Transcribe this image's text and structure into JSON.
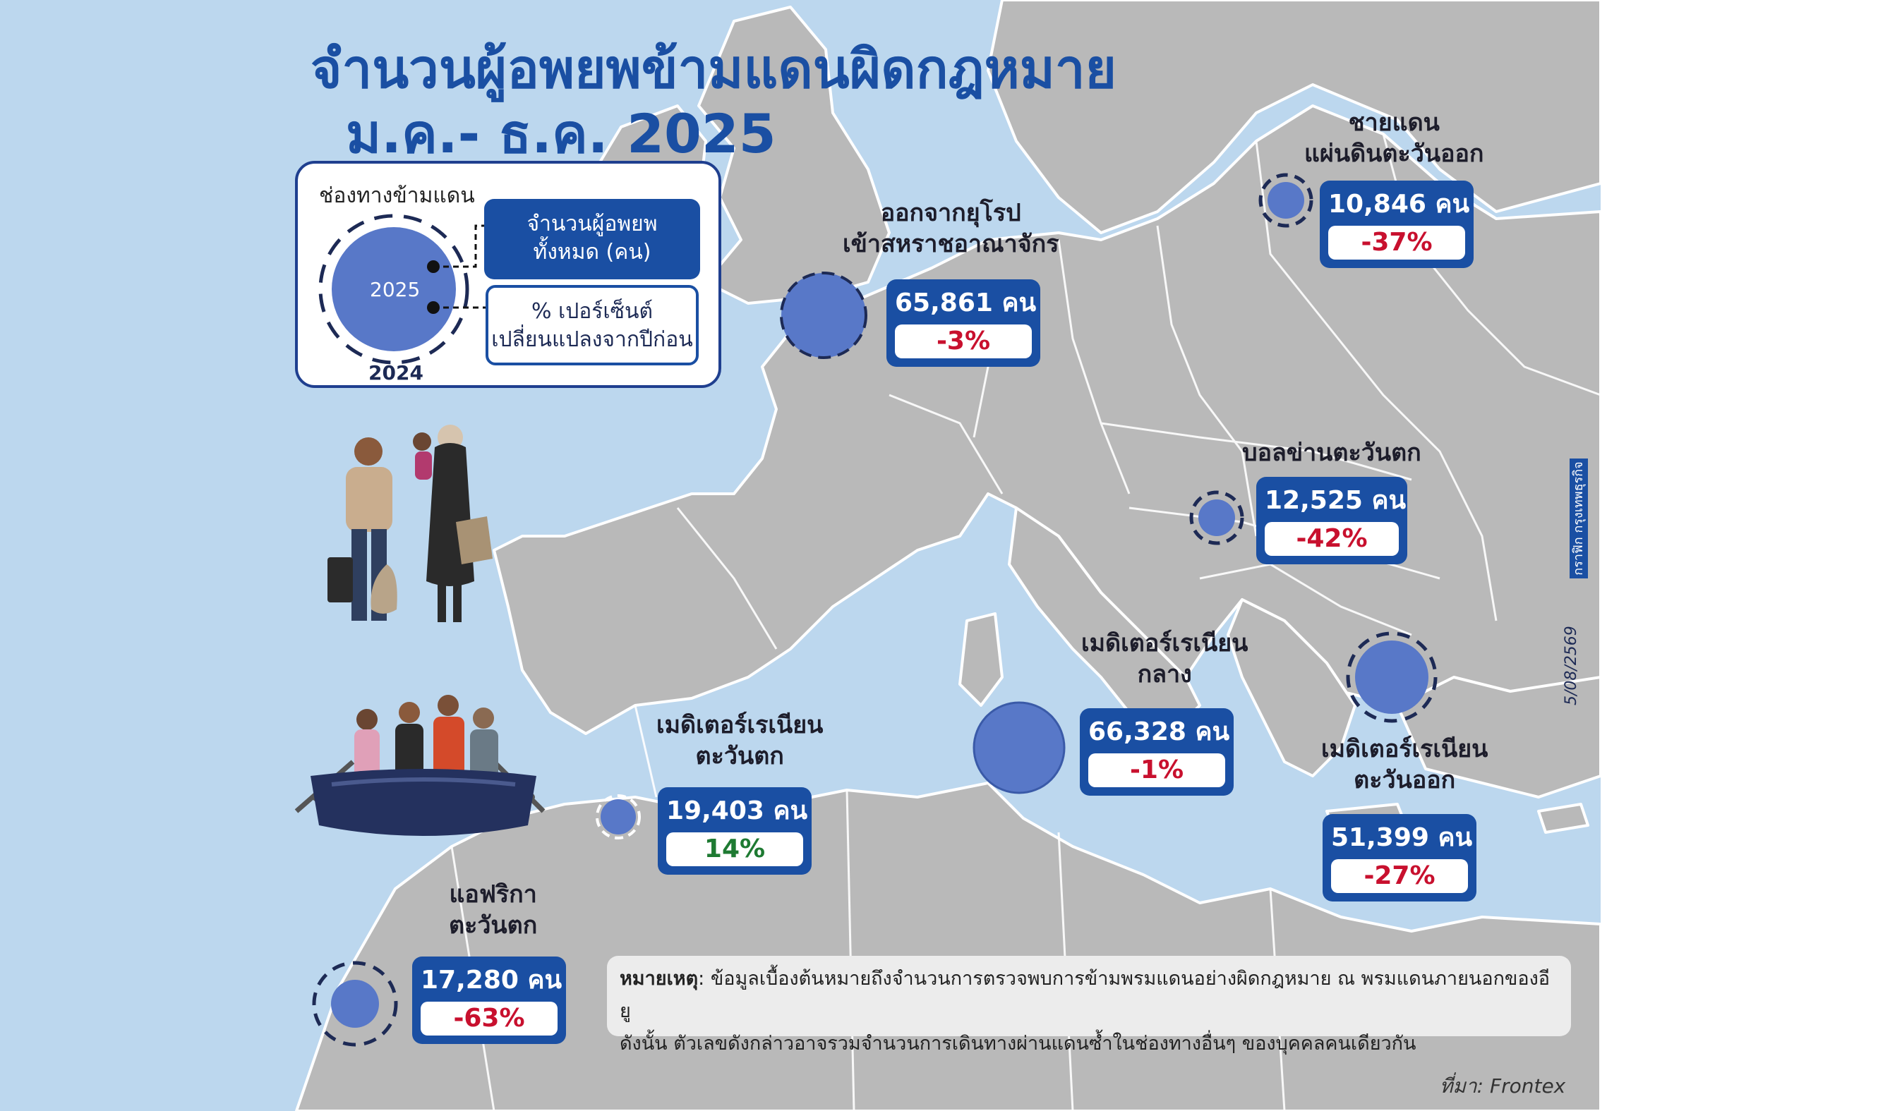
{
  "title": {
    "line1": "จำนวนผู้อพยพข้ามแดนผิดกฎหมาย",
    "line2": "ม.ค.- ธ.ค. 2025"
  },
  "legend": {
    "heading": "ช่องทางข้ามแดน",
    "year_current": "2025",
    "year_previous": "2024",
    "box_total_line1": "จำนวนผู้อพยพ",
    "box_total_line2": "ทั้งหมด (คน)",
    "box_change_line1": "% เปอร์เซ็นต์",
    "box_change_line2": "เปลี่ยนแปลงจากปีก่อน"
  },
  "routes": [
    {
      "id": "uk",
      "label_lines": [
        "ออกจากยุโรป",
        "เข้าสหราชอาณาจักร"
      ],
      "count": "65,861 คน",
      "change": "-3%",
      "trend": "neg"
    },
    {
      "id": "east",
      "label_lines": [
        "ชายแดน",
        "แผ่นดินตะวันออก"
      ],
      "count": "10,846 คน",
      "change": "-37%",
      "trend": "neg"
    },
    {
      "id": "balkan",
      "label_lines": [
        "บอลข่านตะวันตก"
      ],
      "count": "12,525 คน",
      "change": "-42%",
      "trend": "neg"
    },
    {
      "id": "central_med",
      "label_lines": [
        "เมดิเตอร์เรเนียน",
        "กลาง"
      ],
      "count": "66,328 คน",
      "change": "-1%",
      "trend": "neg"
    },
    {
      "id": "east_med",
      "label_lines": [
        "เมดิเตอร์เรเนียน",
        "ตะวันออก"
      ],
      "count": "51,399 คน",
      "change": "-27%",
      "trend": "neg"
    },
    {
      "id": "west_med",
      "label_lines": [
        "เมดิเตอร์เรเนียน",
        "ตะวันตก"
      ],
      "count": "19,403 คน",
      "change": "14%",
      "trend": "pos"
    },
    {
      "id": "west_africa",
      "label_lines": [
        "แอฟริกา",
        "ตะวันตก"
      ],
      "count": "17,280 คน",
      "change": "-63%",
      "trend": "neg"
    }
  ],
  "note": {
    "label": "หมายเหตุ",
    "text_line1": ": ข้อมูลเบื้องต้นหมายถึงจำนวนการตรวจพบการข้ามพรมแดนอย่างผิดกฎหมาย ณ พรมแดนภายนอกของอียู",
    "text_line2": "ดังนั้น ตัวเลขดังกล่าวอาจรวมจำนวนการเดินทางผ่านแดนซ้ำในช่องทางอื่นๆ ของบุคคลคนเดียวกัน"
  },
  "source": "ที่มา: Frontex",
  "date": "5/08/2569",
  "publisher": "กราฟิก กรุงเทพธุรกิจ",
  "colors": {
    "sea": "#bcd7ee",
    "land": "#b8b8b8",
    "accent": "#1a4fa3",
    "bubble": "#5878c8",
    "negative": "#c8102e",
    "positive": "#1e7a32"
  }
}
